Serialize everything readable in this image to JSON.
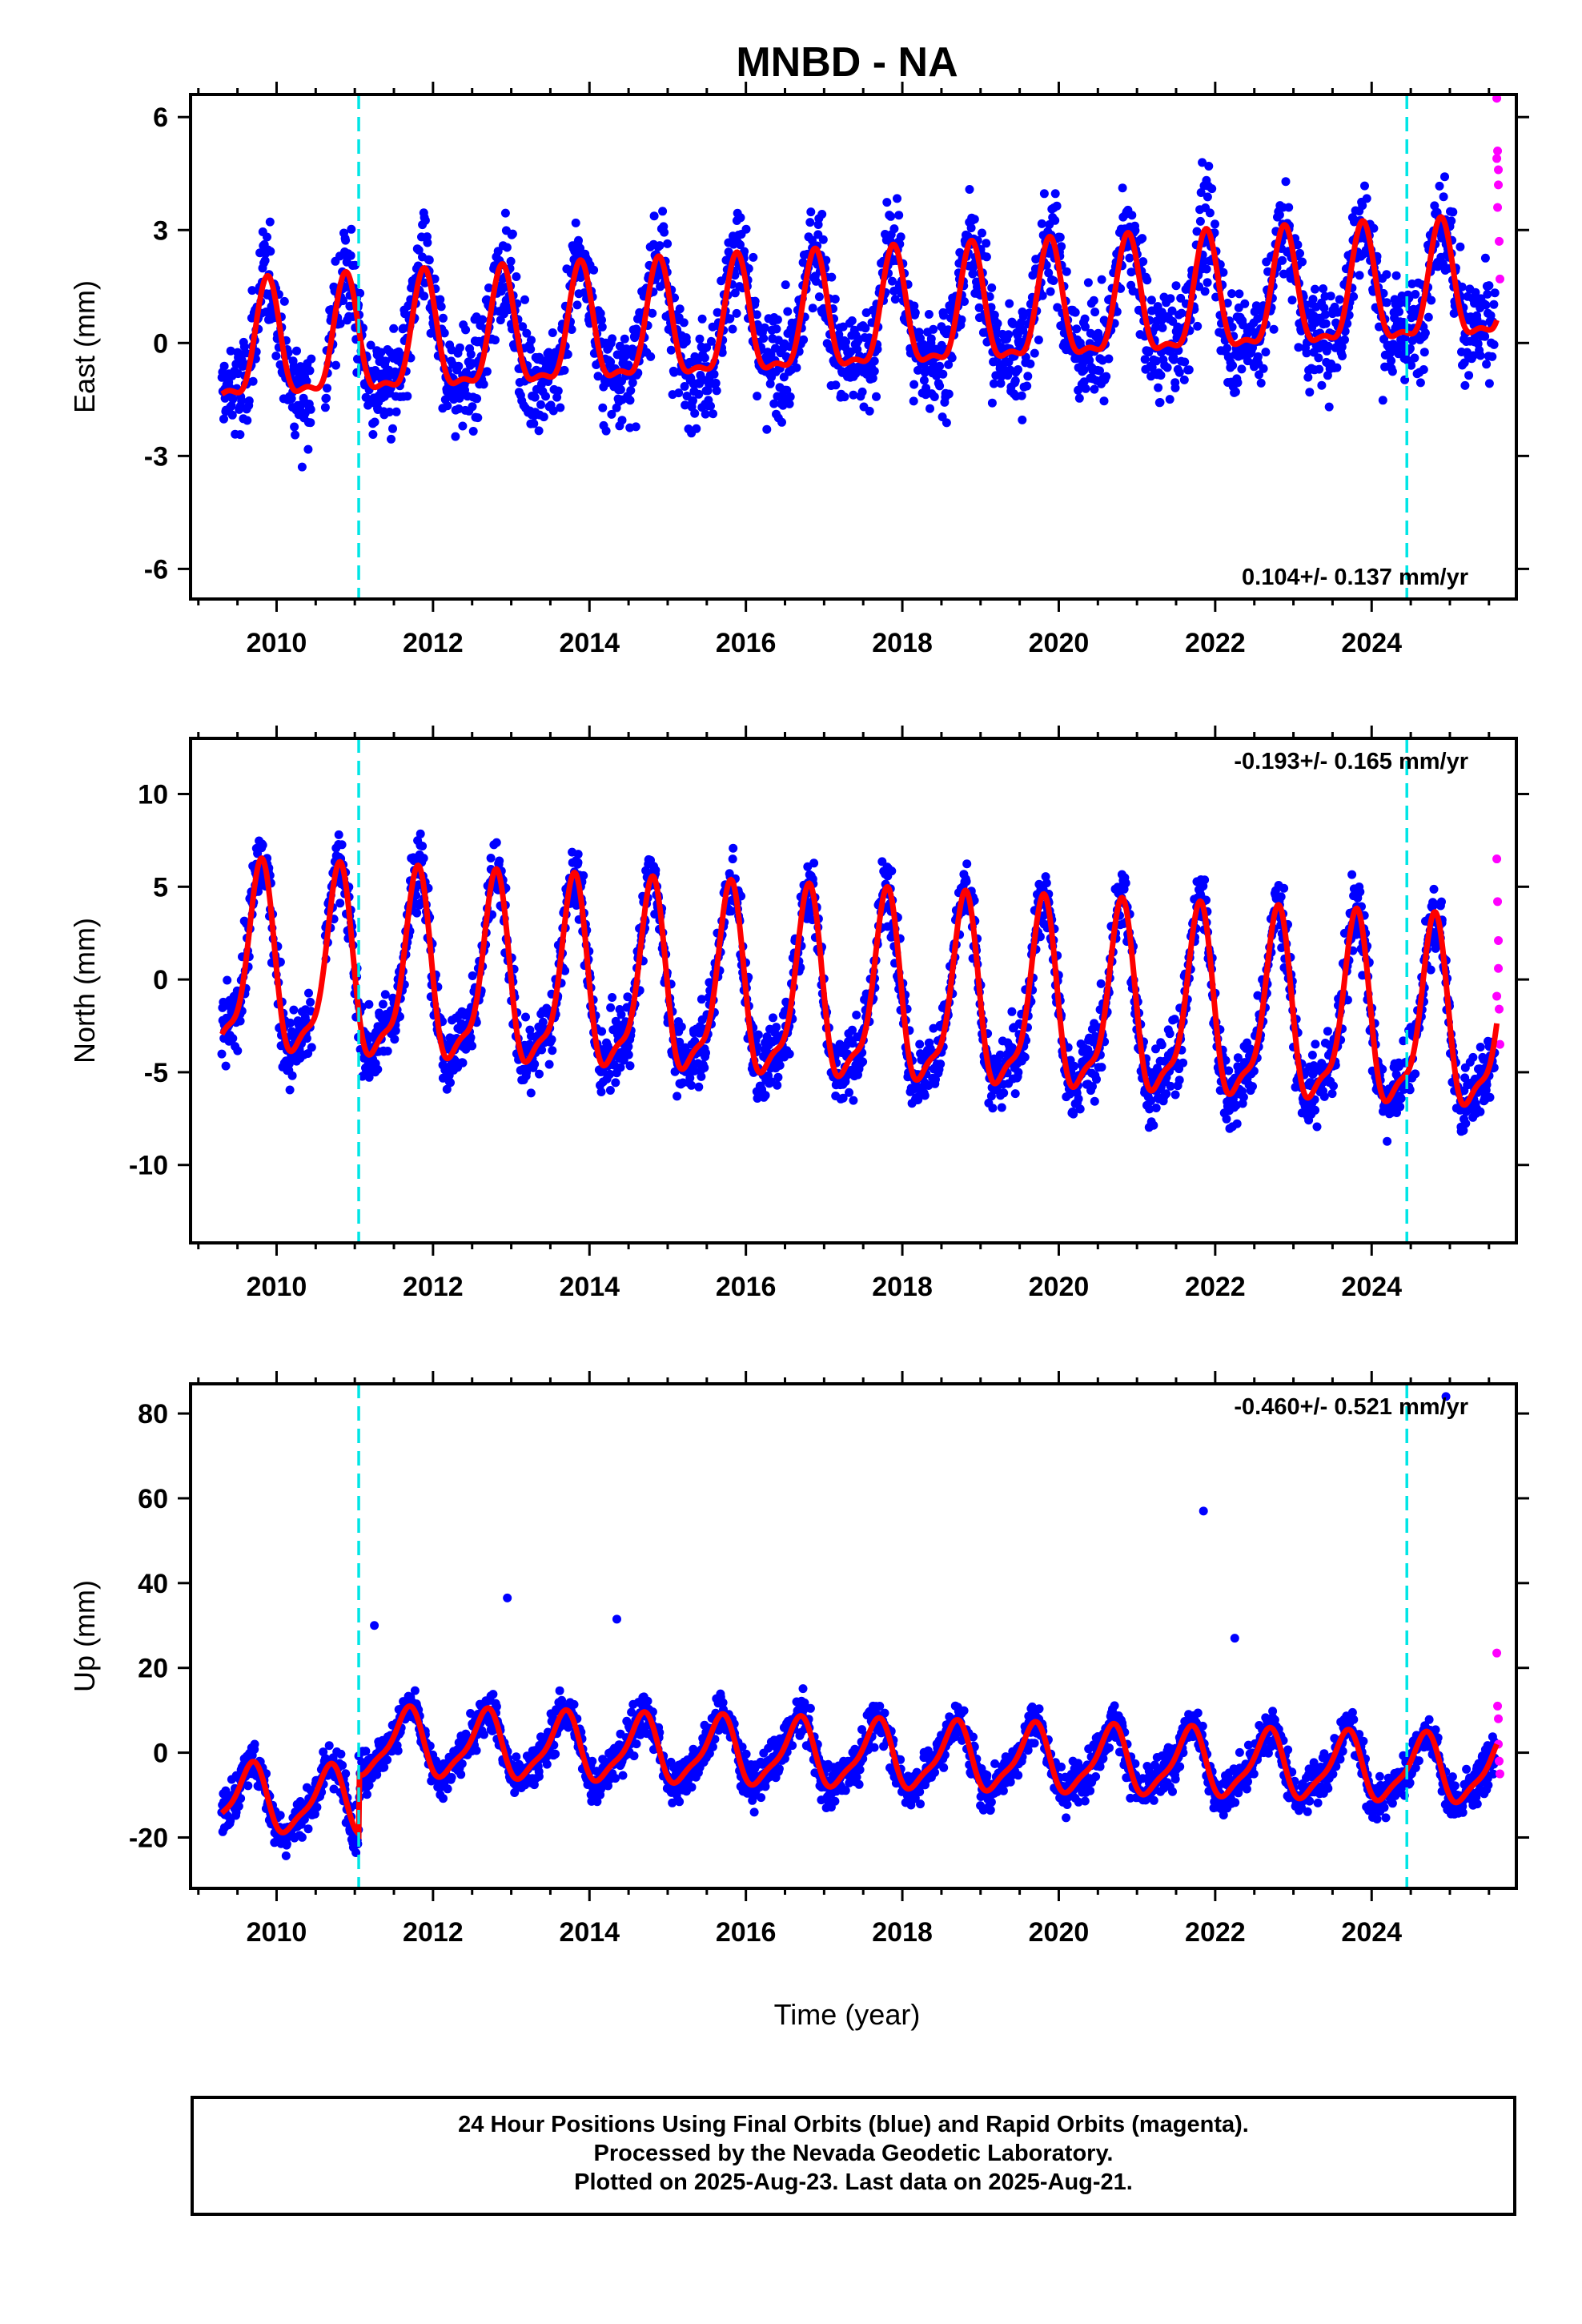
{
  "title": "MNBD - NA",
  "xlabel": "Time (year)",
  "footer": {
    "line1": "24 Hour Positions Using Final Orbits (blue) and Rapid Orbits (magenta).",
    "line2": "Processed by the Nevada Geodetic Laboratory.",
    "line3": "Plotted on 2025-Aug-23. Last data on 2025-Aug-21."
  },
  "colors": {
    "final_orbits": "#0000ff",
    "rapid_orbits": "#ff00ff",
    "model_fit": "#ff0000",
    "event_lines": "#00e5e5"
  },
  "chart_data": [
    {
      "type": "scatter",
      "name": "east",
      "ylabel": "East (mm)",
      "xlim": [
        2008.9,
        2025.85
      ],
      "ylim": [
        -6.8,
        6.6
      ],
      "xticks": [
        2010,
        2012,
        2014,
        2016,
        2018,
        2020,
        2022,
        2024
      ],
      "yticks": [
        -6,
        -3,
        0,
        3,
        6
      ],
      "rate_annotation": "0.104+/- 0.137 mm/yr",
      "rate_position": "bottom-right",
      "event_lines": [
        2011.05,
        2024.45
      ],
      "model": {
        "amplitude": [
          1.5,
          1.5
        ],
        "phase": 2.3,
        "trend_start": -0.3,
        "rate": 0.104
      },
      "series": [
        {
          "name": "final",
          "color": "#0000ff",
          "x_range": [
            2009.3,
            2025.58
          ],
          "scatter": 1.15
        },
        {
          "name": "rapid",
          "color": "#ff00ff",
          "x": [
            2025.6,
            2025.61,
            2025.62,
            2025.62,
            2025.63,
            2025.64,
            2025.6,
            2025.61
          ],
          "y": [
            6.5,
            5.1,
            4.6,
            4.2,
            2.7,
            1.7,
            4.9,
            3.6
          ]
        }
      ]
    },
    {
      "type": "scatter",
      "name": "north",
      "ylabel": "North (mm)",
      "xlim": [
        2008.9,
        2025.85
      ],
      "ylim": [
        -14.2,
        13
      ],
      "xticks": [
        2010,
        2012,
        2014,
        2016,
        2018,
        2020,
        2022,
        2024
      ],
      "yticks": [
        -10,
        -5,
        0,
        5,
        10
      ],
      "rate_annotation": "-0.193+/- 0.165 mm/yr",
      "rate_position": "top-right",
      "event_lines": [
        2011.05,
        2024.45
      ],
      "model": {
        "amplitude": [
          4.8,
          4.3
        ],
        "phase": 2.9,
        "trend_start": 0.4,
        "rate": -0.193
      },
      "series": [
        {
          "name": "final",
          "color": "#0000ff",
          "x_range": [
            2009.3,
            2025.58
          ],
          "scatter": 1.6
        },
        {
          "name": "rapid",
          "color": "#ff00ff",
          "x": [
            2025.6,
            2025.61,
            2025.62,
            2025.62,
            2025.63,
            2025.64,
            2025.6
          ],
          "y": [
            6.5,
            4.2,
            2.1,
            0.6,
            -1.6,
            -3.5,
            -0.9
          ]
        }
      ]
    },
    {
      "type": "scatter",
      "name": "up",
      "ylabel": "Up (mm)",
      "xlim": [
        2008.9,
        2025.85
      ],
      "ylim": [
        -32,
        87
      ],
      "xticks": [
        2010,
        2012,
        2014,
        2016,
        2018,
        2020,
        2022,
        2024
      ],
      "yticks": [
        -20,
        0,
        20,
        40,
        60,
        80
      ],
      "rate_annotation": "-0.460+/- 0.521 mm/yr",
      "rate_position": "top-right",
      "event_lines": [
        2011.05,
        2024.45
      ],
      "model": {
        "amplitude": [
          7.5,
          6.0
        ],
        "phase": 3.7,
        "trend_start": 3.0,
        "rate": -0.46,
        "offset_before_2011": -14
      },
      "outliers": [
        [
          2021.85,
          57
        ],
        [
          2024.95,
          84
        ],
        [
          2014.35,
          31.5
        ],
        [
          2012.95,
          36.5
        ],
        [
          2011.25,
          30
        ],
        [
          2022.25,
          27
        ]
      ],
      "series": [
        {
          "name": "final",
          "color": "#0000ff",
          "x_range": [
            2009.3,
            2025.58
          ],
          "scatter": 4.2
        },
        {
          "name": "rapid",
          "color": "#ff00ff",
          "x": [
            2025.6,
            2025.61,
            2025.62,
            2025.62,
            2025.63,
            2025.64
          ],
          "y": [
            23.5,
            11,
            8,
            2,
            -2,
            -5
          ]
        }
      ]
    }
  ]
}
